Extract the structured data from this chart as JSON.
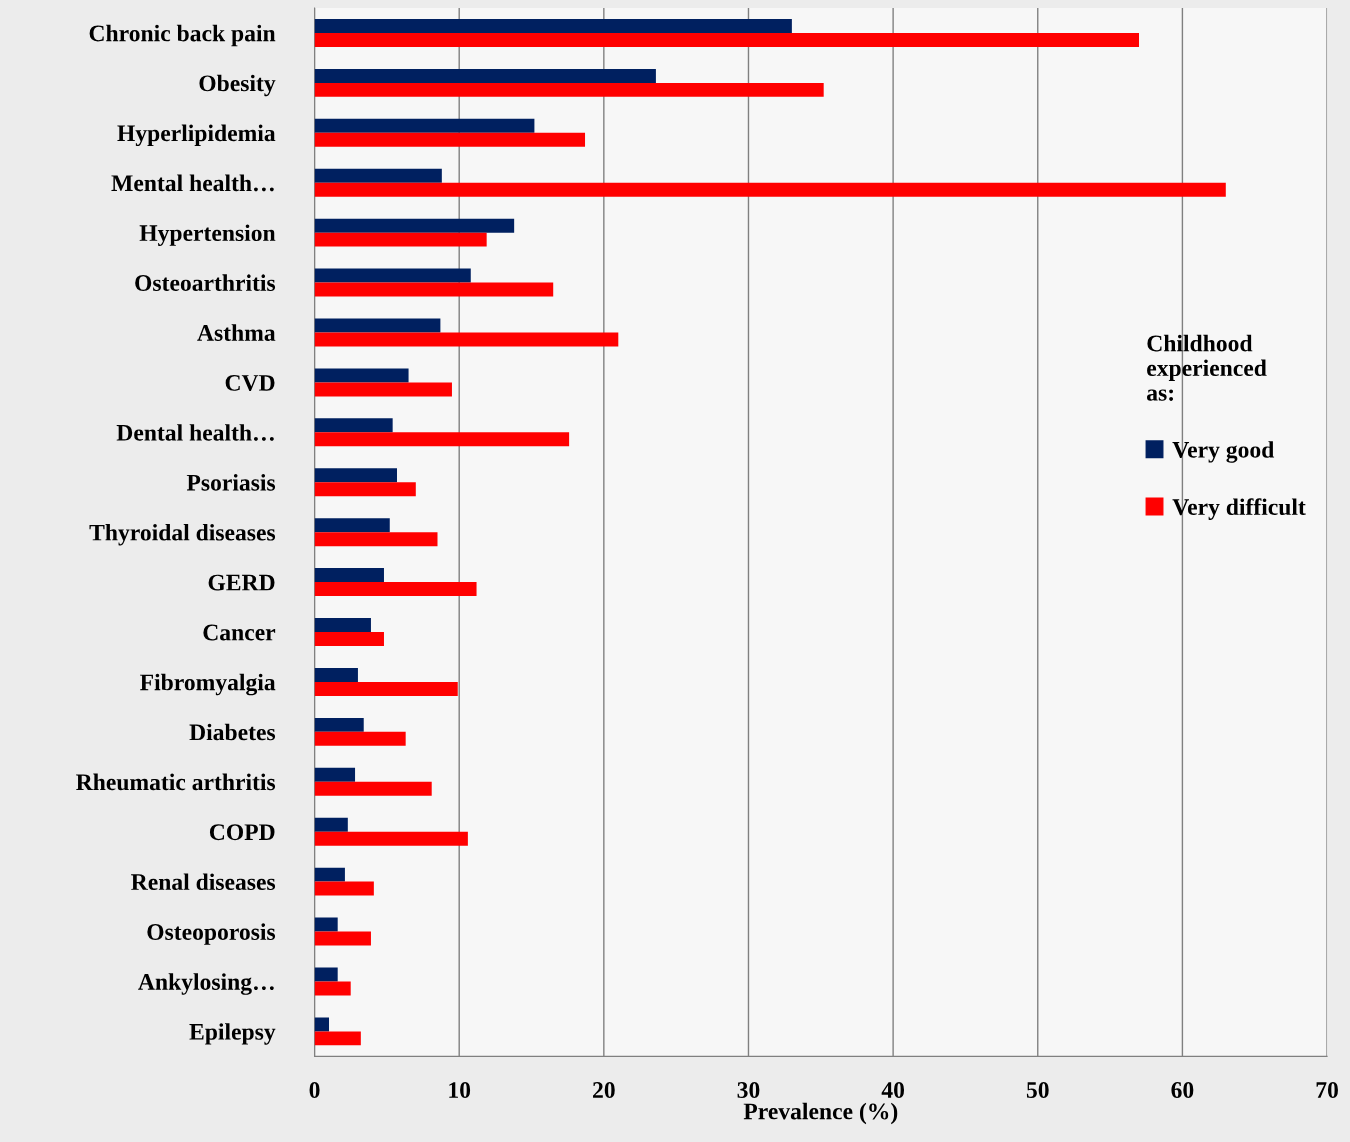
{
  "chart_data": {
    "type": "bar",
    "orientation": "horizontal",
    "xlabel": "Prevalence (%)",
    "legend_title": "Childhood\nexperienced\nas:",
    "categories": [
      "Chronic back pain",
      "Obesity",
      "Hyperlipidemia",
      "Mental health…",
      "Hypertension",
      "Osteoarthritis",
      "Asthma",
      "CVD",
      "Dental health…",
      "Psoriasis",
      "Thyroidal diseases",
      "GERD",
      "Cancer",
      "Fibromyalgia",
      "Diabetes",
      "Rheumatic arthritis",
      "COPD",
      "Renal diseases",
      "Osteoporosis",
      "Ankylosing…",
      "Epilepsy"
    ],
    "series": [
      {
        "name": "Very good",
        "color": "#002060",
        "values": [
          33.0,
          23.6,
          15.2,
          8.8,
          13.8,
          10.8,
          8.7,
          6.5,
          5.4,
          5.7,
          5.2,
          4.8,
          3.9,
          3.0,
          3.4,
          2.8,
          2.3,
          2.1,
          1.6,
          1.6,
          1.0
        ]
      },
      {
        "name": "Very difficult",
        "color": "#ff0000",
        "values": [
          57.0,
          35.2,
          18.7,
          63.0,
          11.9,
          16.5,
          21.0,
          9.5,
          17.6,
          7.0,
          8.5,
          11.2,
          4.8,
          9.9,
          6.3,
          8.1,
          10.6,
          4.1,
          3.9,
          2.5,
          3.2
        ]
      }
    ],
    "xlim": [
      0,
      70
    ],
    "xticks": [
      0,
      10,
      20,
      30,
      40,
      50,
      60,
      70
    ],
    "grid": "x",
    "legend": "right"
  }
}
